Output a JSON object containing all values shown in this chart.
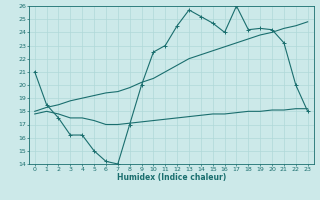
{
  "xlabel": "Humidex (Indice chaleur)",
  "xlim": [
    -0.5,
    23.5
  ],
  "ylim": [
    14,
    26
  ],
  "xticks": [
    0,
    1,
    2,
    3,
    4,
    5,
    6,
    7,
    8,
    9,
    10,
    11,
    12,
    13,
    14,
    15,
    16,
    17,
    18,
    19,
    20,
    21,
    22,
    23
  ],
  "yticks": [
    14,
    15,
    16,
    17,
    18,
    19,
    20,
    21,
    22,
    23,
    24,
    25,
    26
  ],
  "bg_color": "#cce9e9",
  "line_color": "#1a6e6e",
  "grid_color": "#b0d8d8",
  "line1_x": [
    0,
    1,
    2,
    3,
    4,
    5,
    6,
    7,
    8,
    9,
    10,
    11,
    12,
    13,
    14,
    15,
    16,
    17,
    18,
    19,
    20,
    21,
    22,
    23
  ],
  "line1_y": [
    21.0,
    18.5,
    17.5,
    16.2,
    16.2,
    15.0,
    14.2,
    14.0,
    17.0,
    20.0,
    22.5,
    23.0,
    24.5,
    25.7,
    25.2,
    24.7,
    24.0,
    26.0,
    24.2,
    24.3,
    24.2,
    23.2,
    20.0,
    18.0
  ],
  "line2_x": [
    0,
    1,
    2,
    3,
    4,
    5,
    6,
    7,
    8,
    9,
    10,
    11,
    12,
    13,
    14,
    15,
    16,
    17,
    18,
    19,
    20,
    21,
    22,
    23
  ],
  "line2_y": [
    17.8,
    18.0,
    17.8,
    17.5,
    17.5,
    17.3,
    17.0,
    17.0,
    17.1,
    17.2,
    17.3,
    17.4,
    17.5,
    17.6,
    17.7,
    17.8,
    17.8,
    17.9,
    18.0,
    18.0,
    18.1,
    18.1,
    18.2,
    18.2
  ],
  "line3_x": [
    0,
    1,
    2,
    3,
    4,
    5,
    6,
    7,
    8,
    9,
    10,
    11,
    12,
    13,
    14,
    15,
    16,
    17,
    18,
    19,
    20,
    21,
    22,
    23
  ],
  "line3_y": [
    18.0,
    18.3,
    18.5,
    18.8,
    19.0,
    19.2,
    19.4,
    19.5,
    19.8,
    20.2,
    20.5,
    21.0,
    21.5,
    22.0,
    22.3,
    22.6,
    22.9,
    23.2,
    23.5,
    23.8,
    24.0,
    24.3,
    24.5,
    24.8
  ]
}
